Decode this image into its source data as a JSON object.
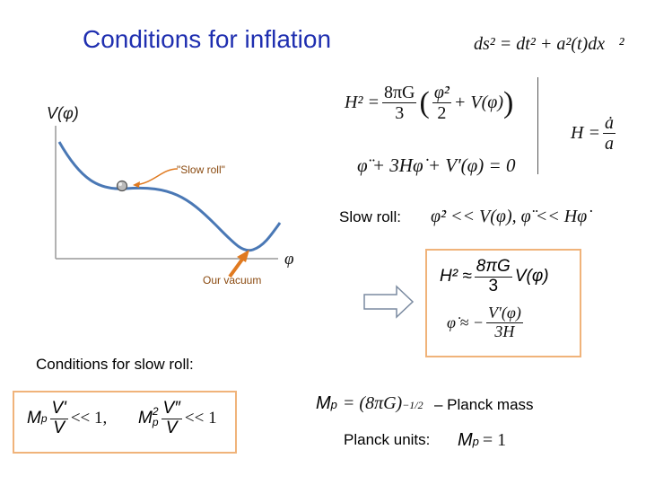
{
  "slide": {
    "title": "Conditions for inflation",
    "metric": "ds² = dt² + a²(t)dx⃗²",
    "friedmann": {
      "lhs": "H² =",
      "coef_num": "8πG",
      "coef_den": "3",
      "kin_num": "φ̇²",
      "kin_den": "2",
      "pot": "+ V(φ)"
    },
    "eom": "φ̈ + 3Hφ̇ + V′(φ) = 0",
    "hubble": {
      "lhs": "H =",
      "num": "ȧ",
      "den": "a"
    },
    "potential_plot": {
      "y_label": "V(φ)",
      "x_label": "φ",
      "slow_roll_label": "\"Slow roll\"",
      "vacuum_label": "Our vacuum"
    },
    "slow_roll_label": "Slow roll:",
    "slow_roll_conditions": "φ̇² << V(φ),   φ̈ << Hφ̇",
    "approx_box": {
      "eq1_lhs": "H² ≈",
      "eq1_num": "8πG",
      "eq1_den": "3",
      "eq1_rhs": "V(φ)",
      "eq2_lhs": "φ̇ ≈ −",
      "eq2_num": "V′(φ)",
      "eq2_den": "3H"
    },
    "conditions_label": "Conditions for slow roll:",
    "condition_box": {
      "c1_pre": "M",
      "c1_sub": "p",
      "c1_num": "V'",
      "c1_den": "V",
      "c1_post": "<< 1,",
      "c2_pre": "M",
      "c2_sup": "2",
      "c2_sub": "p",
      "c2_num": "V″",
      "c2_den": "V",
      "c2_post": "<< 1"
    },
    "planck_mass_eq": "M",
    "planck_mass_sub": "p",
    "planck_mass_rhs": "= (8πG)",
    "planck_mass_exp": "−1/2",
    "planck_mass_label": "– Planck mass",
    "planck_units_label": "Planck units:",
    "planck_units_eq": "= 1",
    "colors": {
      "title": "#1f2fb0",
      "box_border": "#f0b37a",
      "curve": "#4a78b5",
      "arrow_orange": "#e07a20"
    }
  }
}
